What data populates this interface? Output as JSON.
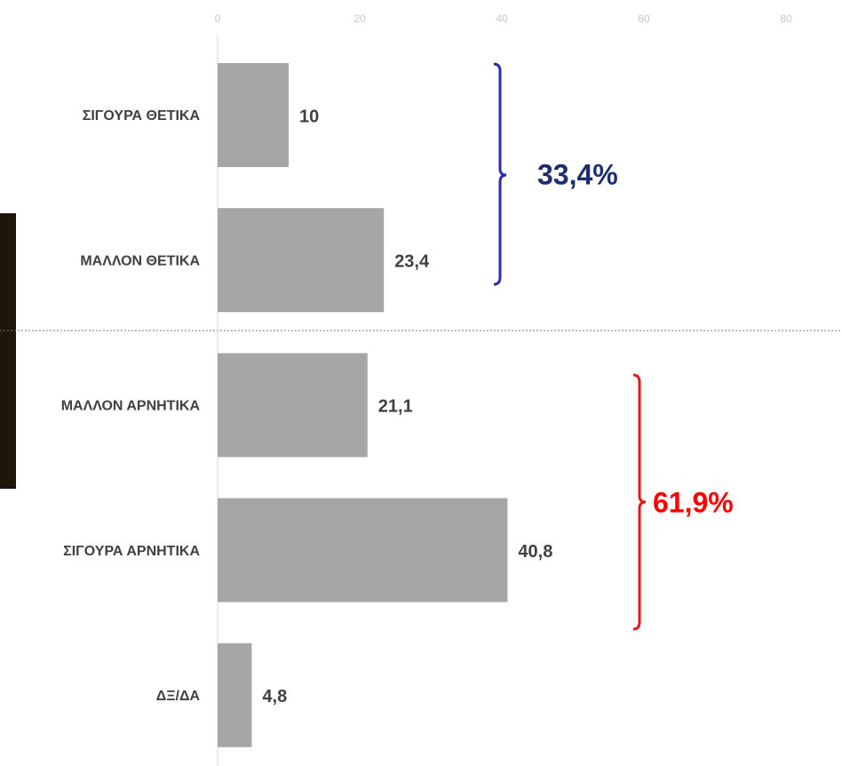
{
  "chart_data": {
    "type": "bar",
    "orientation": "horizontal",
    "categories": [
      "ΣΙΓΟΥΡΑ ΘΕΤΙΚΑ",
      "ΜΑΛΛΟΝ ΘΕΤΙΚΑ",
      "ΜΑΛΛΟΝ ΑΡΝΗΤΙΚΑ",
      "ΣΙΓΟΥΡΑ ΑΡΝΗΤΙΚΑ",
      "ΔΞ/ΔΑ"
    ],
    "values": [
      10,
      23.4,
      21.1,
      40.8,
      4.8
    ],
    "value_labels": [
      "10",
      "23,4",
      "21,1",
      "40,8",
      "4,8"
    ],
    "color": "#a6a6a6",
    "xlim": [
      0,
      88
    ],
    "xticks": [
      0,
      20,
      40,
      60,
      80
    ],
    "annotations": [
      {
        "text": "33,4%",
        "color": "#1c2e6e"
      },
      {
        "text": "61,9%",
        "color": "#ff0000"
      }
    ]
  }
}
